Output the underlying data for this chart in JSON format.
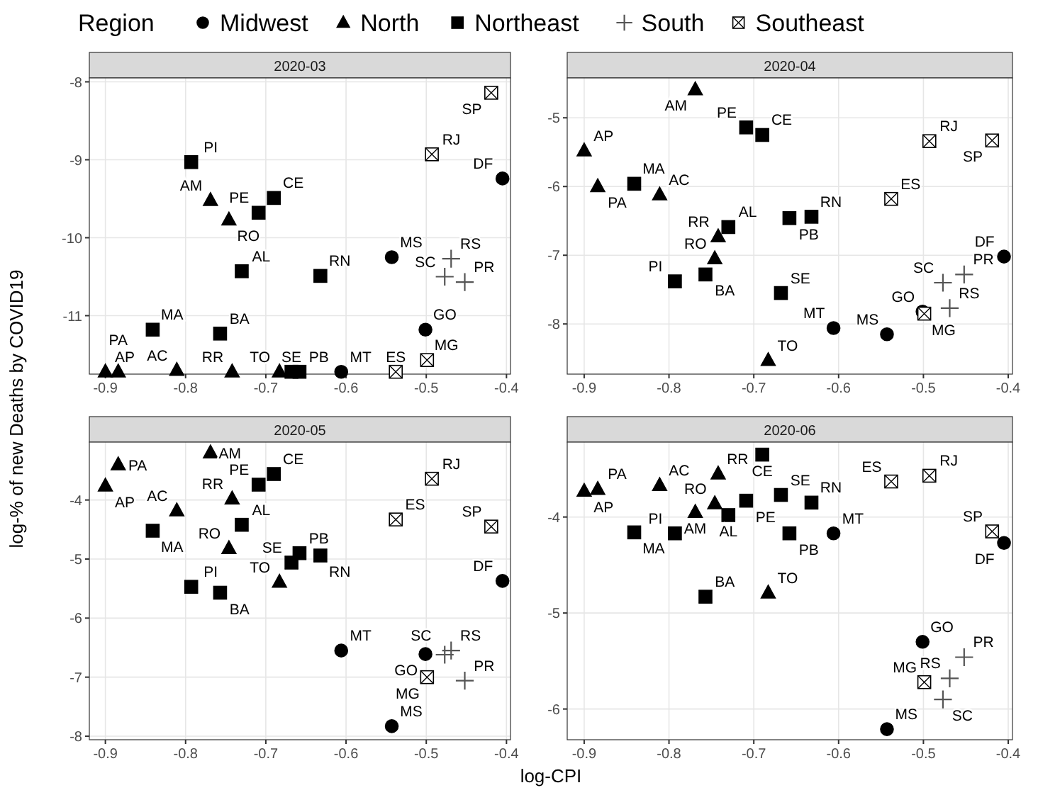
{
  "chart_data": [
    {
      "type": "scatter",
      "title": "2020-03",
      "xlabel": "log-CPI",
      "ylabel": "log-% of new Deaths by COVID19",
      "legend_title": "Region",
      "legend": "top",
      "grid": true,
      "xlim": [
        -0.92,
        -0.395
      ],
      "xticks": [
        -0.9,
        -0.8,
        -0.7,
        -0.6,
        -0.5,
        -0.4
      ],
      "ylim": [
        -11.75,
        -7.95
      ],
      "yticks": [
        -11,
        -10,
        -9,
        -8
      ],
      "series": [
        {
          "name": "Midwest",
          "color": "#000000",
          "marker": "circle",
          "x": [
            -0.405,
            -0.501,
            -0.543,
            -0.606
          ],
          "values": [
            -9.24,
            -11.18,
            -10.25,
            -11.72
          ],
          "value_labels": [
            "DF",
            "GO",
            "MS",
            "MT"
          ]
        },
        {
          "name": "North",
          "color": "#000000",
          "marker": "triangle",
          "x": [
            -0.811,
            -0.769,
            -0.9,
            -0.884,
            -0.746,
            -0.742,
            -0.683
          ],
          "values": [
            -11.7,
            -9.52,
            -11.72,
            -11.72,
            -9.77,
            -11.72,
            -11.72
          ],
          "value_labels": [
            "AC",
            "AM",
            "AP",
            "PA",
            "RO",
            "RR",
            "TO"
          ]
        },
        {
          "name": "Northeast",
          "color": "#000000",
          "marker": "square",
          "x": [
            -0.73,
            -0.757,
            -0.69,
            -0.841,
            -0.658,
            -0.709,
            -0.793,
            -0.632,
            -0.668
          ],
          "values": [
            -10.43,
            -11.23,
            -9.49,
            -11.18,
            -11.72,
            -9.68,
            -9.03,
            -10.49,
            -11.72
          ],
          "value_labels": [
            "AL",
            "BA",
            "CE",
            "MA",
            "PB",
            "PE",
            "PI",
            "RN",
            "SE"
          ]
        },
        {
          "name": "South",
          "color": "#555555",
          "marker": "cross",
          "x": [
            -0.452,
            -0.469,
            -0.477
          ],
          "values": [
            -10.57,
            -10.27,
            -10.5
          ],
          "value_labels": [
            "PR",
            "RS",
            "SC"
          ]
        },
        {
          "name": "Southeast",
          "color": "#ffffff",
          "marker": "square",
          "x": [
            -0.538,
            -0.499,
            -0.493,
            -0.419
          ],
          "values": [
            -11.72,
            -11.57,
            -8.93,
            -8.14
          ],
          "value_labels": [
            "ES",
            "MG",
            "RJ",
            "SP"
          ]
        }
      ]
    },
    {
      "type": "scatter",
      "title": "2020-04",
      "grid": true,
      "xlim": [
        -0.92,
        -0.395
      ],
      "xticks": [
        -0.9,
        -0.8,
        -0.7,
        -0.6,
        -0.5,
        -0.4
      ],
      "ylim": [
        -8.73,
        -4.42
      ],
      "yticks": [
        -8,
        -7,
        -6,
        -5
      ],
      "series": [
        {
          "color": "#000000",
          "marker": "circle",
          "x": [
            -0.405,
            -0.501,
            -0.543,
            -0.606
          ],
          "values": [
            -7.02,
            -7.82,
            -8.15,
            -8.06
          ],
          "value_labels": [
            "DF",
            "GO",
            "MS",
            "MT"
          ]
        },
        {
          "color": "#000000",
          "marker": "triangle",
          "x": [
            -0.811,
            -0.769,
            -0.9,
            -0.884,
            -0.746,
            -0.742,
            -0.683
          ],
          "values": [
            -6.12,
            -4.59,
            -5.48,
            -6.0,
            -7.05,
            -6.73,
            -8.53
          ],
          "value_labels": [
            "AC",
            "AM",
            "AP",
            "PA",
            "RO",
            "RR",
            "TO"
          ]
        },
        {
          "color": "#000000",
          "marker": "square",
          "x": [
            -0.73,
            -0.757,
            -0.69,
            -0.841,
            -0.658,
            -0.709,
            -0.793,
            -0.632,
            -0.668
          ],
          "values": [
            -6.59,
            -7.28,
            -5.25,
            -5.96,
            -6.46,
            -5.14,
            -7.38,
            -6.44,
            -7.55
          ],
          "value_labels": [
            "AL",
            "BA",
            "CE",
            "MA",
            "PB",
            "PE",
            "PI",
            "RN",
            "SE"
          ]
        },
        {
          "color": "#555555",
          "marker": "cross",
          "x": [
            -0.452,
            -0.469,
            -0.477
          ],
          "values": [
            -7.28,
            -7.77,
            -7.4
          ],
          "value_labels": [
            "PR",
            "RS",
            "SC"
          ]
        },
        {
          "color": "#ffffff",
          "marker": "square",
          "x": [
            -0.538,
            -0.499,
            -0.493,
            -0.419
          ],
          "values": [
            -6.18,
            -7.85,
            -5.34,
            -5.33
          ],
          "value_labels": [
            "ES",
            "MG",
            "RJ",
            "SP"
          ]
        }
      ]
    },
    {
      "type": "scatter",
      "title": "2020-05",
      "grid": true,
      "xlim": [
        -0.92,
        -0.395
      ],
      "xticks": [
        -0.9,
        -0.8,
        -0.7,
        -0.6,
        -0.5,
        -0.4
      ],
      "ylim": [
        -8.06,
        -3.02
      ],
      "yticks": [
        -8,
        -7,
        -6,
        -5,
        -4
      ],
      "series": [
        {
          "color": "#000000",
          "marker": "circle",
          "x": [
            -0.405,
            -0.501,
            -0.543,
            -0.606
          ],
          "values": [
            -5.37,
            -6.61,
            -7.83,
            -6.55
          ],
          "value_labels": [
            "DF",
            "GO",
            "MS",
            "MT"
          ]
        },
        {
          "color": "#000000",
          "marker": "triangle",
          "x": [
            -0.811,
            -0.769,
            -0.9,
            -0.884,
            -0.746,
            -0.742,
            -0.683
          ],
          "values": [
            -4.18,
            -3.2,
            -3.76,
            -3.4,
            -4.82,
            -3.98,
            -5.39
          ],
          "value_labels": [
            "AC",
            "AM",
            "AP",
            "PA",
            "RO",
            "RR",
            "TO"
          ]
        },
        {
          "color": "#000000",
          "marker": "square",
          "x": [
            -0.73,
            -0.757,
            -0.69,
            -0.841,
            -0.658,
            -0.709,
            -0.793,
            -0.632,
            -0.668
          ],
          "values": [
            -4.42,
            -5.57,
            -3.56,
            -4.52,
            -4.9,
            -3.74,
            -5.47,
            -4.94,
            -5.06
          ],
          "value_labels": [
            "AL",
            "BA",
            "CE",
            "MA",
            "PB",
            "PE",
            "PI",
            "RN",
            "SE"
          ]
        },
        {
          "color": "#555555",
          "marker": "cross",
          "x": [
            -0.452,
            -0.469,
            -0.477
          ],
          "values": [
            -7.06,
            -6.55,
            -6.62
          ],
          "value_labels": [
            "PR",
            "RS",
            "SC"
          ]
        },
        {
          "color": "#ffffff",
          "marker": "square",
          "x": [
            -0.538,
            -0.499,
            -0.493,
            -0.419
          ],
          "values": [
            -4.33,
            -7.0,
            -3.64,
            -4.45
          ],
          "value_labels": [
            "ES",
            "MG",
            "RJ",
            "SP"
          ]
        }
      ]
    },
    {
      "type": "scatter",
      "title": "2020-06",
      "grid": true,
      "xlim": [
        -0.92,
        -0.395
      ],
      "xticks": [
        -0.9,
        -0.8,
        -0.7,
        -0.6,
        -0.5,
        -0.4
      ],
      "ylim": [
        -6.32,
        -3.22
      ],
      "yticks": [
        -6,
        -5,
        -4
      ],
      "series": [
        {
          "color": "#000000",
          "marker": "circle",
          "x": [
            -0.405,
            -0.501,
            -0.543,
            -0.606
          ],
          "values": [
            -4.27,
            -5.3,
            -6.21,
            -4.17
          ],
          "value_labels": [
            "DF",
            "GO",
            "MS",
            "MT"
          ]
        },
        {
          "color": "#000000",
          "marker": "triangle",
          "x": [
            -0.811,
            -0.769,
            -0.9,
            -0.884,
            -0.746,
            -0.742,
            -0.683
          ],
          "values": [
            -3.67,
            -3.95,
            -3.73,
            -3.71,
            -3.86,
            -3.55,
            -4.79
          ],
          "value_labels": [
            "AC",
            "AM",
            "AP",
            "PA",
            "RO",
            "RR",
            "TO"
          ]
        },
        {
          "color": "#000000",
          "marker": "square",
          "x": [
            -0.73,
            -0.757,
            -0.69,
            -0.841,
            -0.658,
            -0.709,
            -0.793,
            -0.632,
            -0.668
          ],
          "values": [
            -3.98,
            -4.83,
            -3.35,
            -4.16,
            -4.17,
            -3.83,
            -4.17,
            -3.85,
            -3.77
          ],
          "value_labels": [
            "AL",
            "BA",
            "CE",
            "MA",
            "PB",
            "PE",
            "PI",
            "RN",
            "SE"
          ]
        },
        {
          "color": "#555555",
          "marker": "cross",
          "x": [
            -0.452,
            -0.469,
            -0.477
          ],
          "values": [
            -5.46,
            -5.68,
            -5.9
          ],
          "value_labels": [
            "PR",
            "RS",
            "SC"
          ]
        },
        {
          "color": "#ffffff",
          "marker": "square",
          "x": [
            -0.538,
            -0.499,
            -0.493,
            -0.419
          ],
          "values": [
            -3.63,
            -5.72,
            -3.57,
            -4.15
          ],
          "value_labels": [
            "ES",
            "MG",
            "RJ",
            "SP"
          ]
        }
      ]
    }
  ]
}
